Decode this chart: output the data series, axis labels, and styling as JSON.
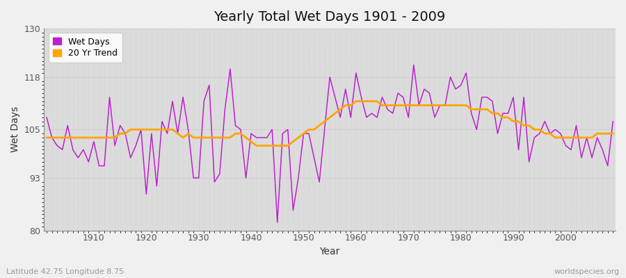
{
  "title": "Yearly Total Wet Days 1901 - 2009",
  "xlabel": "Year",
  "ylabel": "Wet Days",
  "subtitle_left": "Latitude 42.75 Longitude 8.75",
  "subtitle_right": "worldspecies.org",
  "ylim": [
    80,
    130
  ],
  "yticks": [
    80,
    93,
    105,
    118,
    130
  ],
  "xticks": [
    1910,
    1920,
    1930,
    1940,
    1950,
    1960,
    1970,
    1980,
    1990,
    2000
  ],
  "line_color": "#bb22cc",
  "trend_color": "#FFA500",
  "bg_color": "#f0f0f0",
  "plot_bg_color": "#dcdcdc",
  "years": [
    1901,
    1902,
    1903,
    1904,
    1905,
    1906,
    1907,
    1908,
    1909,
    1910,
    1911,
    1912,
    1913,
    1914,
    1915,
    1916,
    1917,
    1918,
    1919,
    1920,
    1921,
    1922,
    1923,
    1924,
    1925,
    1926,
    1927,
    1928,
    1929,
    1930,
    1931,
    1932,
    1933,
    1934,
    1935,
    1936,
    1937,
    1938,
    1939,
    1940,
    1941,
    1942,
    1943,
    1944,
    1945,
    1946,
    1947,
    1948,
    1949,
    1950,
    1951,
    1952,
    1953,
    1954,
    1955,
    1956,
    1957,
    1958,
    1959,
    1960,
    1961,
    1962,
    1963,
    1964,
    1965,
    1966,
    1967,
    1968,
    1969,
    1970,
    1971,
    1972,
    1973,
    1974,
    1975,
    1976,
    1977,
    1978,
    1979,
    1980,
    1981,
    1982,
    1983,
    1984,
    1985,
    1986,
    1987,
    1988,
    1989,
    1990,
    1991,
    1992,
    1993,
    1994,
    1995,
    1996,
    1997,
    1998,
    1999,
    2000,
    2001,
    2002,
    2003,
    2004,
    2005,
    2006,
    2007,
    2008,
    2009
  ],
  "wet_days": [
    108,
    103,
    101,
    100,
    106,
    100,
    98,
    100,
    97,
    102,
    96,
    96,
    113,
    101,
    106,
    104,
    98,
    101,
    105,
    89,
    104,
    91,
    107,
    104,
    112,
    104,
    113,
    105,
    93,
    93,
    112,
    116,
    92,
    94,
    110,
    120,
    106,
    105,
    93,
    104,
    103,
    103,
    103,
    105,
    82,
    104,
    105,
    85,
    93,
    104,
    104,
    98,
    92,
    105,
    118,
    113,
    108,
    115,
    108,
    119,
    113,
    108,
    109,
    108,
    113,
    110,
    109,
    114,
    113,
    108,
    121,
    111,
    115,
    114,
    108,
    111,
    111,
    118,
    115,
    116,
    119,
    109,
    105,
    113,
    113,
    112,
    104,
    109,
    109,
    113,
    100,
    113,
    97,
    103,
    104,
    107,
    104,
    105,
    104,
    101,
    100,
    106,
    98,
    103,
    98,
    103,
    100,
    96,
    107
  ],
  "trend": [
    103,
    103,
    103,
    103,
    103,
    103,
    103,
    103,
    103,
    103,
    103,
    103,
    103,
    103,
    104,
    104,
    105,
    105,
    105,
    105,
    105,
    105,
    105,
    105,
    105,
    104,
    103,
    104,
    103,
    103,
    103,
    103,
    103,
    103,
    103,
    103,
    104,
    104,
    103,
    102,
    101,
    101,
    101,
    101,
    101,
    101,
    101,
    102,
    103,
    104,
    105,
    105,
    106,
    107,
    108,
    109,
    110,
    111,
    111,
    112,
    112,
    112,
    112,
    112,
    111,
    111,
    111,
    111,
    111,
    111,
    111,
    111,
    111,
    111,
    111,
    111,
    111,
    111,
    111,
    111,
    111,
    110,
    110,
    110,
    110,
    109,
    109,
    108,
    108,
    107,
    107,
    106,
    106,
    105,
    105,
    104,
    104,
    103,
    103,
    103,
    103,
    103,
    103,
    103,
    103,
    104,
    104,
    104,
    104
  ]
}
